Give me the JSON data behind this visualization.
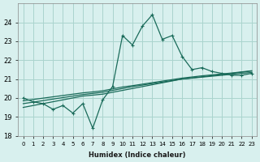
{
  "xlabel": "Humidex (Indice chaleur)",
  "ylabel": "",
  "bg_color": "#d8f0ee",
  "grid_color": "#aad4ce",
  "line_color": "#1a6b5a",
  "x_values": [
    0,
    1,
    2,
    3,
    4,
    5,
    6,
    7,
    8,
    9,
    10,
    11,
    12,
    13,
    14,
    15,
    16,
    17,
    18,
    19,
    20,
    21,
    22,
    23
  ],
  "y_main": [
    20.0,
    19.8,
    19.7,
    19.4,
    19.6,
    19.2,
    19.7,
    18.4,
    19.9,
    20.6,
    23.3,
    22.8,
    23.8,
    24.4,
    23.1,
    23.3,
    22.2,
    21.5,
    21.6,
    21.4,
    21.3,
    21.2,
    21.2,
    21.3
  ],
  "y_reg1": [
    19.5,
    19.6,
    19.7,
    19.8,
    19.9,
    20.0,
    20.1,
    20.15,
    20.2,
    20.3,
    20.4,
    20.5,
    20.6,
    20.7,
    20.8,
    20.9,
    21.0,
    21.05,
    21.1,
    21.15,
    21.2,
    21.25,
    21.3,
    21.35
  ],
  "y_reg2": [
    19.7,
    19.78,
    19.86,
    19.94,
    20.02,
    20.1,
    20.18,
    20.24,
    20.3,
    20.4,
    20.5,
    20.6,
    20.68,
    20.76,
    20.84,
    20.92,
    21.0,
    21.06,
    21.12,
    21.18,
    21.24,
    21.3,
    21.36,
    21.42
  ],
  "y_reg3": [
    19.85,
    19.92,
    19.99,
    20.06,
    20.13,
    20.2,
    20.27,
    20.32,
    20.38,
    20.48,
    20.58,
    20.65,
    20.73,
    20.81,
    20.89,
    20.97,
    21.05,
    21.11,
    21.17,
    21.22,
    21.27,
    21.32,
    21.38,
    21.44
  ],
  "ylim": [
    18,
    25
  ],
  "yticks": [
    18,
    19,
    20,
    21,
    22,
    23,
    24
  ],
  "xlim": [
    -0.5,
    23.5
  ],
  "xtick_labels": [
    "0",
    "1",
    "2",
    "3",
    "4",
    "5",
    "6",
    "7",
    "8",
    "9",
    "10",
    "11",
    "12",
    "13",
    "14",
    "15",
    "16",
    "17",
    "18",
    "19",
    "20",
    "21",
    "22",
    "23"
  ]
}
